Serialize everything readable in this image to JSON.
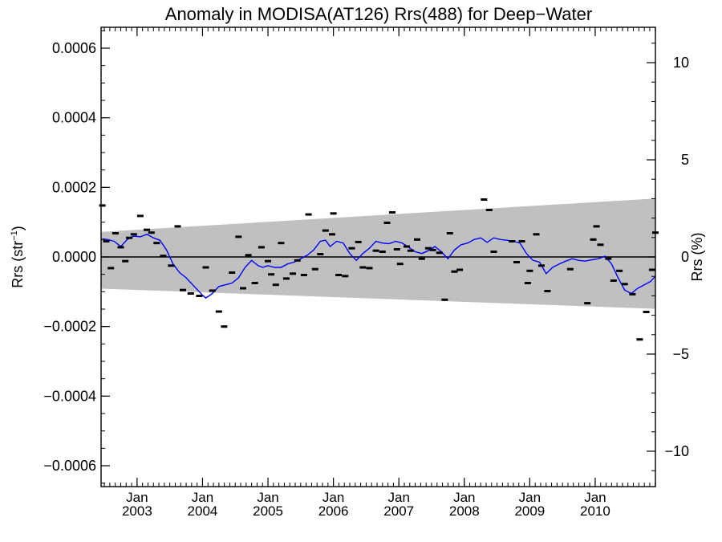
{
  "chart_data": {
    "type": "scatter",
    "title": "Anomaly in MODISA(AT126) Rrs(488) for Deep−Water",
    "ylabel_left": "Rrs (str",
    "ylabel_left_sup": "−1",
    "ylabel_left_close": ")",
    "ylabel_right": "Rrs (%)",
    "xlim": [
      2002.45,
      2010.92
    ],
    "ylim": [
      -0.00066,
      0.00066
    ],
    "ylim_right": [
      -11.82,
      11.82
    ],
    "left_ticks": [
      {
        "value": 0.0006,
        "label": "0.0006"
      },
      {
        "value": 0.0004,
        "label": "0.0004"
      },
      {
        "value": 0.0002,
        "label": "0.0002"
      },
      {
        "value": 0.0,
        "label": "0.0000"
      },
      {
        "value": -0.0002,
        "label": "−0.0002"
      },
      {
        "value": -0.0004,
        "label": "−0.0004"
      },
      {
        "value": -0.0006,
        "label": "−0.0006"
      }
    ],
    "right_ticks": [
      {
        "value": 10,
        "label": "10"
      },
      {
        "value": 5,
        "label": "5"
      },
      {
        "value": 0,
        "label": "0"
      },
      {
        "value": -5,
        "label": "−5"
      },
      {
        "value": -10,
        "label": "−10"
      }
    ],
    "x_ticks": [
      {
        "value": 2003.0,
        "month": "Jan",
        "year": "2003"
      },
      {
        "value": 2004.0,
        "month": "Jan",
        "year": "2004"
      },
      {
        "value": 2005.0,
        "month": "Jan",
        "year": "2005"
      },
      {
        "value": 2006.0,
        "month": "Jan",
        "year": "2006"
      },
      {
        "value": 2007.0,
        "month": "Jan",
        "year": "2007"
      },
      {
        "value": 2008.0,
        "month": "Jan",
        "year": "2008"
      },
      {
        "value": 2009.0,
        "month": "Jan",
        "year": "2009"
      },
      {
        "value": 2010.0,
        "month": "Jan",
        "year": "2010"
      }
    ],
    "band": {
      "x": [
        2002.45,
        2010.92
      ],
      "upper": [
        7.2e-05,
        0.000168
      ],
      "lower": [
        -9.1e-05,
        -0.000149
      ],
      "color": "#c0c0c0"
    },
    "zero_line": 0.0,
    "points": [
      [
        2002.47,
        0.000148
      ],
      [
        2002.53,
        4.5e-05
      ],
      [
        2002.6,
        -3.2e-05
      ],
      [
        2002.67,
        6.8e-05
      ],
      [
        2002.75,
        2.8e-05
      ],
      [
        2002.82,
        -1.2e-05
      ],
      [
        2002.88,
        5.5e-05
      ],
      [
        2002.95,
        6.5e-05
      ],
      [
        2003.05,
        0.000118
      ],
      [
        2003.15,
        7.8e-05
      ],
      [
        2003.22,
        7e-05
      ],
      [
        2003.3,
        4e-05
      ],
      [
        2003.4,
        3e-06
      ],
      [
        2003.52,
        -2.5e-05
      ],
      [
        2003.62,
        8.8e-05
      ],
      [
        2003.7,
        -9.5e-05
      ],
      [
        2003.82,
        -0.000105
      ],
      [
        2003.95,
        -0.000112
      ],
      [
        2004.05,
        -3e-05
      ],
      [
        2004.15,
        -9.7e-05
      ],
      [
        2004.25,
        -0.000157
      ],
      [
        2004.33,
        -0.0002
      ],
      [
        2004.45,
        -4.5e-05
      ],
      [
        2004.55,
        5.8e-05
      ],
      [
        2004.62,
        -9e-05
      ],
      [
        2004.7,
        5e-06
      ],
      [
        2004.8,
        -7.5e-05
      ],
      [
        2004.9,
        2.8e-05
      ],
      [
        2005.0,
        -1.2e-05
      ],
      [
        2005.05,
        -5e-05
      ],
      [
        2005.12,
        -8e-05
      ],
      [
        2005.2,
        4e-05
      ],
      [
        2005.28,
        -6.2e-05
      ],
      [
        2005.38,
        -4.8e-05
      ],
      [
        2005.45,
        -1e-05
      ],
      [
        2005.55,
        -5.2e-05
      ],
      [
        2005.62,
        0.000122
      ],
      [
        2005.72,
        -3.5e-05
      ],
      [
        2005.8,
        8e-06
      ],
      [
        2005.88,
        7.6e-05
      ],
      [
        2005.98,
        6.5e-05
      ],
      [
        2006.0,
        0.000125
      ],
      [
        2006.08,
        -5.2e-05
      ],
      [
        2006.18,
        -5.5e-05
      ],
      [
        2006.28,
        2.5e-05
      ],
      [
        2006.38,
        4.3e-05
      ],
      [
        2006.45,
        -3e-05
      ],
      [
        2006.55,
        -3.2e-05
      ],
      [
        2006.65,
        1.8e-05
      ],
      [
        2006.75,
        1.5e-05
      ],
      [
        2006.82,
        9.8e-05
      ],
      [
        2006.9,
        0.000128
      ],
      [
        2006.97,
        2.2e-05
      ],
      [
        2007.02,
        -2e-05
      ],
      [
        2007.12,
        3e-05
      ],
      [
        2007.18,
        1.8e-05
      ],
      [
        2007.28,
        5e-05
      ],
      [
        2007.35,
        -5e-06
      ],
      [
        2007.45,
        2.5e-05
      ],
      [
        2007.52,
        2e-05
      ],
      [
        2007.62,
        1.2e-05
      ],
      [
        2007.7,
        -0.000123
      ],
      [
        2007.78,
        6.8e-05
      ],
      [
        2007.85,
        -4.2e-05
      ],
      [
        2007.93,
        -3.7e-05
      ],
      [
        2008.3,
        0.000165
      ],
      [
        2008.38,
        0.000135
      ],
      [
        2008.45,
        1.5e-05
      ],
      [
        2008.73,
        4.5e-05
      ],
      [
        2008.8,
        -1.5e-05
      ],
      [
        2008.88,
        4.5e-05
      ],
      [
        2008.97,
        -7.5e-05
      ],
      [
        2009.0,
        -4e-05
      ],
      [
        2009.1,
        6.5e-05
      ],
      [
        2009.18,
        -2.5e-05
      ],
      [
        2009.27,
        -9.8e-05
      ],
      [
        2009.62,
        -3.5e-05
      ],
      [
        2009.88,
        -0.000133
      ],
      [
        2009.97,
        5e-05
      ],
      [
        2010.02,
        8.8e-05
      ],
      [
        2010.08,
        3.5e-05
      ],
      [
        2010.2,
        -5e-06
      ],
      [
        2010.28,
        -6.8e-05
      ],
      [
        2010.37,
        -4e-05
      ],
      [
        2010.45,
        -7.8e-05
      ],
      [
        2010.57,
        -0.000107
      ],
      [
        2010.68,
        -0.000237
      ],
      [
        2010.78,
        -0.000158
      ],
      [
        2010.87,
        -3.7e-05
      ],
      [
        2010.92,
        7e-05
      ]
    ],
    "line": {
      "color": "#0000ff",
      "x": [
        2002.47,
        2002.55,
        2002.65,
        2002.75,
        2002.85,
        2002.95,
        2003.05,
        2003.15,
        2003.25,
        2003.35,
        2003.45,
        2003.55,
        2003.65,
        2003.75,
        2003.85,
        2003.95,
        2004.0,
        2004.05,
        2004.1,
        2004.15,
        2004.25,
        2004.35,
        2004.45,
        2004.55,
        2004.65,
        2004.75,
        2004.85,
        2004.92,
        2005.0,
        2005.1,
        2005.2,
        2005.3,
        2005.4,
        2005.5,
        2005.6,
        2005.7,
        2005.8,
        2005.88,
        2005.95,
        2006.05,
        2006.15,
        2006.25,
        2006.35,
        2006.45,
        2006.55,
        2006.65,
        2006.75,
        2006.85,
        2006.95,
        2007.05,
        2007.15,
        2007.25,
        2007.35,
        2007.45,
        2007.55,
        2007.65,
        2007.75,
        2007.85,
        2007.95,
        2008.05,
        2008.15,
        2008.25,
        2008.35,
        2008.45,
        2008.55,
        2008.65,
        2008.75,
        2008.85,
        2008.95,
        2009.05,
        2009.15,
        2009.25,
        2009.35,
        2009.45,
        2009.55,
        2009.65,
        2009.75,
        2009.85,
        2009.95,
        2010.05,
        2010.15,
        2010.25,
        2010.35,
        2010.45,
        2010.55,
        2010.65,
        2010.75,
        2010.85,
        2010.92
      ],
      "y": [
        5.2e-05,
        5e-05,
        4.5e-05,
        3e-05,
        5e-05,
        6e-05,
        5.8e-05,
        6.5e-05,
        5.5e-05,
        4.8e-05,
        2e-05,
        -2e-05,
        -4.5e-05,
        -6e-05,
        -8e-05,
        -0.0001,
        -0.00011,
        -0.000118,
        -0.000112,
        -0.000105,
        -8.5e-05,
        -8e-05,
        -7.5e-05,
        -6e-05,
        -3e-05,
        -1e-05,
        -2.5e-05,
        -3e-05,
        -2.5e-05,
        -3e-05,
        -3e-05,
        -2e-05,
        -1.5e-05,
        -5e-06,
        5e-06,
        2e-05,
        4.5e-05,
        4.8e-05,
        3e-05,
        4.5e-05,
        4e-05,
        1e-05,
        -1e-05,
        1e-05,
        2.5e-05,
        4.5e-05,
        4e-05,
        3.8e-05,
        4.5e-05,
        4e-05,
        2.8e-05,
        1.5e-05,
        1e-05,
        1.8e-05,
        3e-05,
        1.5e-05,
        -5e-06,
        2e-05,
        3.5e-05,
        4e-05,
        5e-05,
        5.5e-05,
        4.2e-05,
        5.5e-05,
        5e-05,
        4.8e-05,
        4.5e-05,
        4e-05,
        1e-05,
        -1e-05,
        -1.5e-05,
        -4.8e-05,
        -3e-05,
        -2e-05,
        -1.2e-05,
        -5e-06,
        -1e-05,
        -1.2e-05,
        -8e-06,
        -5e-06,
        2e-06,
        -2e-05,
        -6e-05,
        -9.5e-05,
        -0.000105,
        -9e-05,
        -8e-05,
        -7e-05,
        -5.5e-05
      ]
    }
  }
}
